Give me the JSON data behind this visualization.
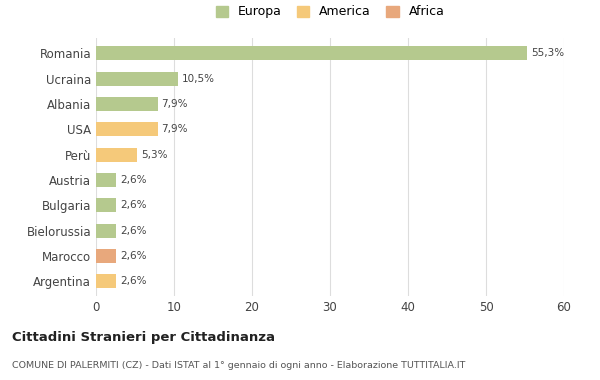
{
  "categories": [
    "Romania",
    "Ucraina",
    "Albania",
    "USA",
    "Perù",
    "Austria",
    "Bulgaria",
    "Bielorussia",
    "Marocco",
    "Argentina"
  ],
  "values": [
    55.3,
    10.5,
    7.9,
    7.9,
    5.3,
    2.6,
    2.6,
    2.6,
    2.6,
    2.6
  ],
  "labels": [
    "55,3%",
    "10,5%",
    "7,9%",
    "7,9%",
    "5,3%",
    "2,6%",
    "2,6%",
    "2,6%",
    "2,6%",
    "2,6%"
  ],
  "colors": [
    "#b5c98e",
    "#b5c98e",
    "#b5c98e",
    "#f5c97a",
    "#f5c97a",
    "#b5c98e",
    "#b5c98e",
    "#b5c98e",
    "#e8a87c",
    "#f5c97a"
  ],
  "legend_labels": [
    "Europa",
    "America",
    "Africa"
  ],
  "legend_colors": [
    "#b5c98e",
    "#f5c97a",
    "#e8a87c"
  ],
  "title": "Cittadini Stranieri per Cittadinanza",
  "subtitle": "COMUNE DI PALERMITI (CZ) - Dati ISTAT al 1° gennaio di ogni anno - Elaborazione TUTTITALIA.IT",
  "xlim": [
    0,
    60
  ],
  "xticks": [
    0,
    10,
    20,
    30,
    40,
    50,
    60
  ],
  "background_color": "#ffffff",
  "grid_color": "#dddddd",
  "bar_height": 0.55
}
